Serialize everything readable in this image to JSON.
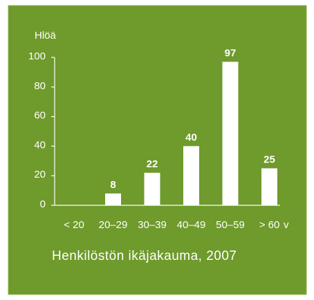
{
  "chart_data": {
    "type": "bar",
    "title": "Henkilöstön ikäjakauma, 2007",
    "y_label": "Hlöä",
    "x_label": "v",
    "categories": [
      "< 20",
      "20–29",
      "30–39",
      "40–49",
      "50–59",
      "> 60"
    ],
    "values": [
      null,
      8,
      22,
      40,
      97,
      25
    ],
    "color": "#ffffff",
    "background": "#6f9a2c",
    "ylim": [
      0,
      100
    ],
    "yticks": [
      0,
      20,
      40,
      60,
      80,
      100
    ],
    "grid": false
  }
}
